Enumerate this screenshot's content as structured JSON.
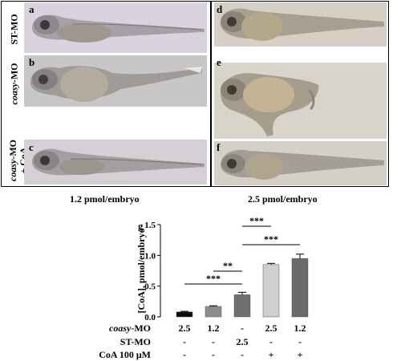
{
  "row_labels": {
    "st": "ST-MO",
    "coasy_name": "coasy",
    "coasy_suffix": "-MO",
    "rescue_name": "coasy",
    "rescue_suffix": "-MO",
    "rescue_line2": "+ CoA"
  },
  "panel_letters": [
    "a",
    "b",
    "c",
    "d",
    "e",
    "f"
  ],
  "dose_left": "1.2 pmol/embryo",
  "dose_right": "2.5 pmol/embryo",
  "chart_letter": "g",
  "chart_data": {
    "type": "bar",
    "ylabel": "[CoA], pmol/embryo",
    "ylim": [
      0,
      1.5
    ],
    "yticks": [
      "0.0",
      "0.5",
      "1.0",
      "1.5"
    ],
    "values": [
      0.08,
      0.17,
      0.36,
      0.85,
      0.95
    ],
    "errors": [
      0.01,
      0.01,
      0.04,
      0.02,
      0.07
    ],
    "colors": [
      "#0b0b0b",
      "#8d8d8d",
      "#6f6f6f",
      "#cfcfcf",
      "#6a6a6a"
    ],
    "significance": [
      {
        "label": "***",
        "from": 0,
        "to": 2
      },
      {
        "label": "**",
        "from": 1,
        "to": 2
      },
      {
        "label": "***",
        "from": 2,
        "to": 4
      },
      {
        "label": "***",
        "from": 2,
        "to": 3
      }
    ]
  },
  "table": {
    "rows": [
      {
        "label_italic": "coasy",
        "label_rest": "-MO",
        "values": [
          "2.5",
          "1.2",
          "-",
          "2.5",
          "1.2"
        ]
      },
      {
        "label_italic": "",
        "label_rest": "ST-MO",
        "values": [
          "-",
          "-",
          "2.5",
          "-",
          "-"
        ]
      },
      {
        "label_italic": "",
        "label_rest": "CoA 100 μM",
        "values": [
          "-",
          "-",
          "-",
          "+",
          "+"
        ]
      }
    ]
  }
}
